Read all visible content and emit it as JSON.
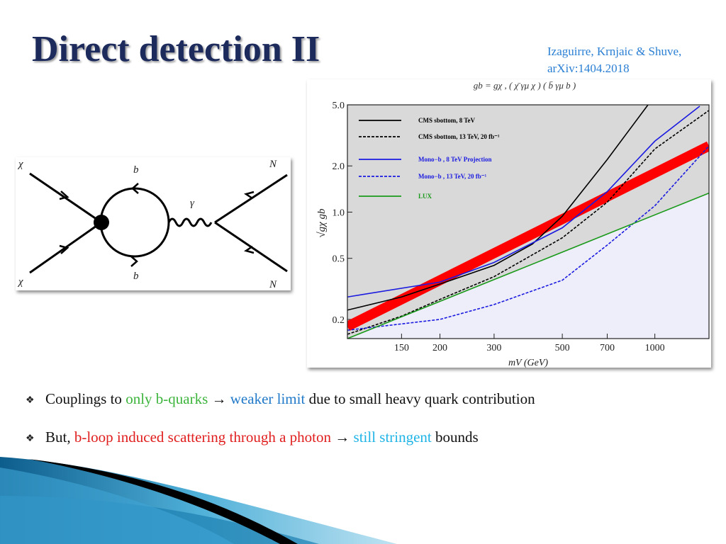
{
  "title": "Direct detection II",
  "citation": [
    "Izaguirre, Krnjaic & Shuve,",
    "arXiv:1404.2018"
  ],
  "diagram": {
    "labels": [
      "χ",
      "b",
      "γ",
      "N",
      "χ",
      "b",
      "N"
    ]
  },
  "plot": {
    "title": "gb = gχ   ,  ( χ̄ γμ χ ) ( b̄ γμ b )",
    "xlabel": "mV (GeV)",
    "ylabel": "√gχ gb",
    "xscale": "log",
    "yscale": "log",
    "xlim": [
      100,
      1500
    ],
    "ylim": [
      0.15,
      5
    ],
    "xticks": [
      150,
      200,
      300,
      500,
      700,
      1000
    ],
    "yticks": [
      {
        "value": 5,
        "label": "5.0"
      },
      {
        "value": 2,
        "label": "2.0"
      },
      {
        "value": 1,
        "label": "1.0"
      },
      0.5,
      0.2
    ],
    "series": [
      {
        "name": "CMS sbottom, 8 TeV",
        "color": "#000000",
        "dash": false,
        "x": [
          100,
          150,
          200,
          300,
          400,
          500,
          700,
          950
        ],
        "values": [
          0.23,
          0.28,
          0.34,
          0.45,
          0.62,
          0.94,
          2.2,
          5.0
        ]
      },
      {
        "name": "CMS sbottom, 13 TeV, 20 fb⁻¹",
        "color": "#000000",
        "dash": true,
        "x": [
          100,
          150,
          200,
          300,
          500,
          700,
          1000,
          1500
        ],
        "values": [
          0.16,
          0.21,
          0.27,
          0.38,
          0.68,
          1.16,
          2.58,
          4.6
        ]
      },
      {
        "name": "Mono−b , 8 TeV Projection",
        "color": "#1a1ae0",
        "dash": false,
        "x": [
          100,
          200,
          300,
          500,
          700,
          1000,
          1400
        ],
        "values": [
          0.28,
          0.35,
          0.47,
          0.79,
          1.36,
          2.9,
          4.9
        ]
      },
      {
        "name": "Mono−b , 13 TeV, 20 fb⁻¹",
        "color": "#1a1ae0",
        "dash": true,
        "x": [
          100,
          200,
          300,
          500,
          700,
          1000,
          1500
        ],
        "values": [
          0.17,
          0.2,
          0.25,
          0.36,
          0.61,
          1.1,
          2.7
        ]
      },
      {
        "name": "LUX",
        "color": "#1a9a1a",
        "dash": false,
        "x": [
          100,
          1500
        ],
        "values": [
          0.15,
          1.33
        ]
      },
      {
        "color": "#ff0000",
        "width": 14,
        "x": [
          100,
          1500
        ],
        "values": [
          0.18,
          2.7
        ]
      }
    ]
  },
  "bullets": [
    [
      "Couplings to ",
      "only b-quarks",
      " → ",
      "weaker limit",
      " due to small heavy quark contribution"
    ],
    [
      "But, ",
      "b-loop induced scattering through a photon",
      " → ",
      "still stringent",
      " bounds"
    ]
  ]
}
